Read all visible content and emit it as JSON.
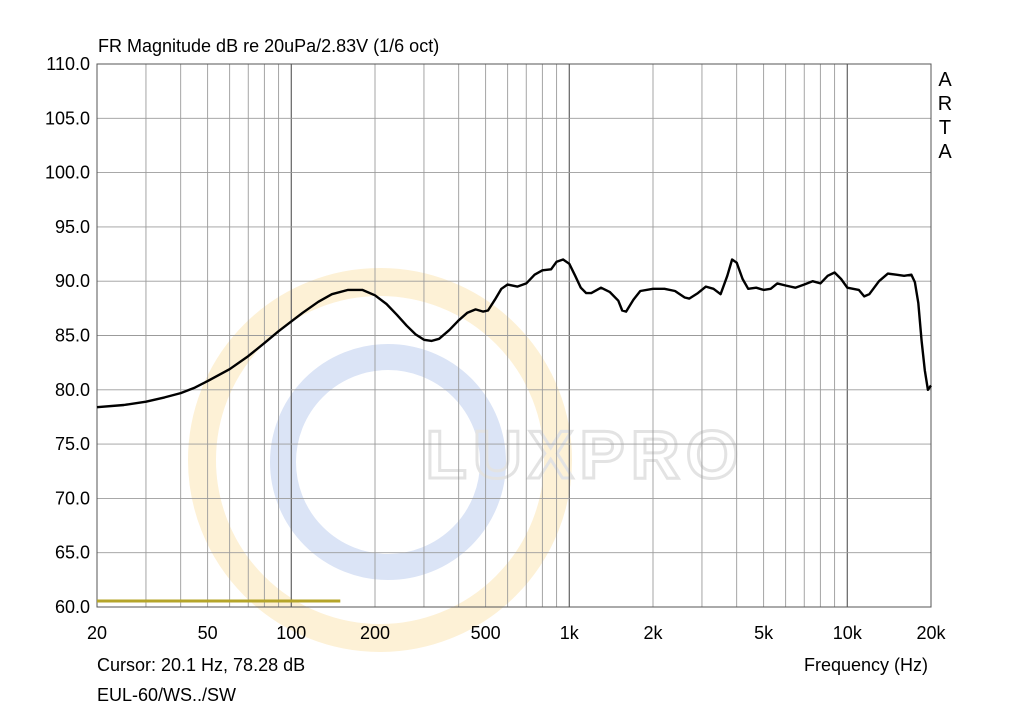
{
  "chart_data": {
    "type": "line",
    "title": "FR Magnitude dB re 20uPa/2.83V (1/6 oct)",
    "xlabel": "Frequency (Hz)",
    "ylabel": "",
    "x_scale": "log",
    "xlim": [
      20,
      20000
    ],
    "ylim": [
      60,
      110
    ],
    "grid": true,
    "x_tick_labels": [
      {
        "value": 20,
        "label": "20"
      },
      {
        "value": 50,
        "label": "50"
      },
      {
        "value": 100,
        "label": "100"
      },
      {
        "value": 200,
        "label": "200"
      },
      {
        "value": 500,
        "label": "500"
      },
      {
        "value": 1000,
        "label": "1k"
      },
      {
        "value": 2000,
        "label": "2k"
      },
      {
        "value": 5000,
        "label": "5k"
      },
      {
        "value": 10000,
        "label": "10k"
      },
      {
        "value": 20000,
        "label": "20k"
      }
    ],
    "y_tick_labels": [
      "110.0",
      "105.0",
      "100.0",
      "95.0",
      "90.0",
      "85.0",
      "80.0",
      "75.0",
      "70.0",
      "65.0",
      "60.0"
    ],
    "series": [
      {
        "color": "#000000",
        "points": [
          [
            20,
            78.4
          ],
          [
            25,
            78.6
          ],
          [
            30,
            78.9
          ],
          [
            35,
            79.3
          ],
          [
            40,
            79.7
          ],
          [
            45,
            80.2
          ],
          [
            50,
            80.8
          ],
          [
            60,
            81.9
          ],
          [
            70,
            83.1
          ],
          [
            80,
            84.3
          ],
          [
            90,
            85.4
          ],
          [
            100,
            86.3
          ],
          [
            110,
            87.1
          ],
          [
            125,
            88.1
          ],
          [
            140,
            88.8
          ],
          [
            160,
            89.2
          ],
          [
            180,
            89.2
          ],
          [
            200,
            88.7
          ],
          [
            220,
            87.9
          ],
          [
            240,
            86.9
          ],
          [
            260,
            85.9
          ],
          [
            280,
            85.1
          ],
          [
            300,
            84.6
          ],
          [
            320,
            84.5
          ],
          [
            340,
            84.7
          ],
          [
            370,
            85.5
          ],
          [
            400,
            86.4
          ],
          [
            430,
            87.1
          ],
          [
            460,
            87.4
          ],
          [
            490,
            87.2
          ],
          [
            510,
            87.3
          ],
          [
            540,
            88.3
          ],
          [
            570,
            89.3
          ],
          [
            600,
            89.7
          ],
          [
            650,
            89.5
          ],
          [
            700,
            89.8
          ],
          [
            750,
            90.6
          ],
          [
            800,
            91.0
          ],
          [
            860,
            91.1
          ],
          [
            900,
            91.8
          ],
          [
            950,
            92.0
          ],
          [
            1000,
            91.6
          ],
          [
            1050,
            90.5
          ],
          [
            1100,
            89.4
          ],
          [
            1150,
            88.9
          ],
          [
            1200,
            88.9
          ],
          [
            1300,
            89.4
          ],
          [
            1400,
            89.0
          ],
          [
            1500,
            88.2
          ],
          [
            1550,
            87.3
          ],
          [
            1600,
            87.2
          ],
          [
            1700,
            88.3
          ],
          [
            1800,
            89.1
          ],
          [
            2000,
            89.3
          ],
          [
            2200,
            89.3
          ],
          [
            2400,
            89.1
          ],
          [
            2600,
            88.5
          ],
          [
            2700,
            88.4
          ],
          [
            2900,
            88.9
          ],
          [
            3100,
            89.5
          ],
          [
            3300,
            89.3
          ],
          [
            3500,
            88.8
          ],
          [
            3700,
            90.5
          ],
          [
            3850,
            92.0
          ],
          [
            4000,
            91.7
          ],
          [
            4200,
            90.2
          ],
          [
            4400,
            89.3
          ],
          [
            4700,
            89.4
          ],
          [
            5000,
            89.2
          ],
          [
            5300,
            89.3
          ],
          [
            5600,
            89.8
          ],
          [
            6000,
            89.6
          ],
          [
            6500,
            89.4
          ],
          [
            7000,
            89.7
          ],
          [
            7500,
            90.0
          ],
          [
            8000,
            89.8
          ],
          [
            8500,
            90.5
          ],
          [
            9000,
            90.8
          ],
          [
            9500,
            90.2
          ],
          [
            10000,
            89.4
          ],
          [
            11000,
            89.2
          ],
          [
            11500,
            88.6
          ],
          [
            12000,
            88.8
          ],
          [
            13000,
            90.0
          ],
          [
            14000,
            90.7
          ],
          [
            15000,
            90.6
          ],
          [
            16000,
            90.5
          ],
          [
            17000,
            90.6
          ],
          [
            17500,
            89.9
          ],
          [
            18000,
            88.0
          ],
          [
            18500,
            84.5
          ],
          [
            19000,
            81.8
          ],
          [
            19500,
            80.0
          ],
          [
            20000,
            80.4
          ]
        ]
      },
      {
        "color": "#b5a52a",
        "points": [
          [
            20,
            60.55
          ],
          [
            150,
            60.55
          ]
        ]
      }
    ],
    "annotations": {
      "cursor": "Cursor: 20.1 Hz, 78.28 dB",
      "trace_name": "EUL-60/WS../SW"
    }
  },
  "brand_text": [
    "A",
    "R",
    "T",
    "A"
  ],
  "watermark": "LUXPRO",
  "colors": {
    "trace": "#000000",
    "reference_line": "#b5a52a",
    "grid": "#9b9b9b",
    "watermark_ring_outer": "#fdf1d6",
    "watermark_ring_inner": "#dbe4f6",
    "watermark_text": "#e3e3e3"
  }
}
